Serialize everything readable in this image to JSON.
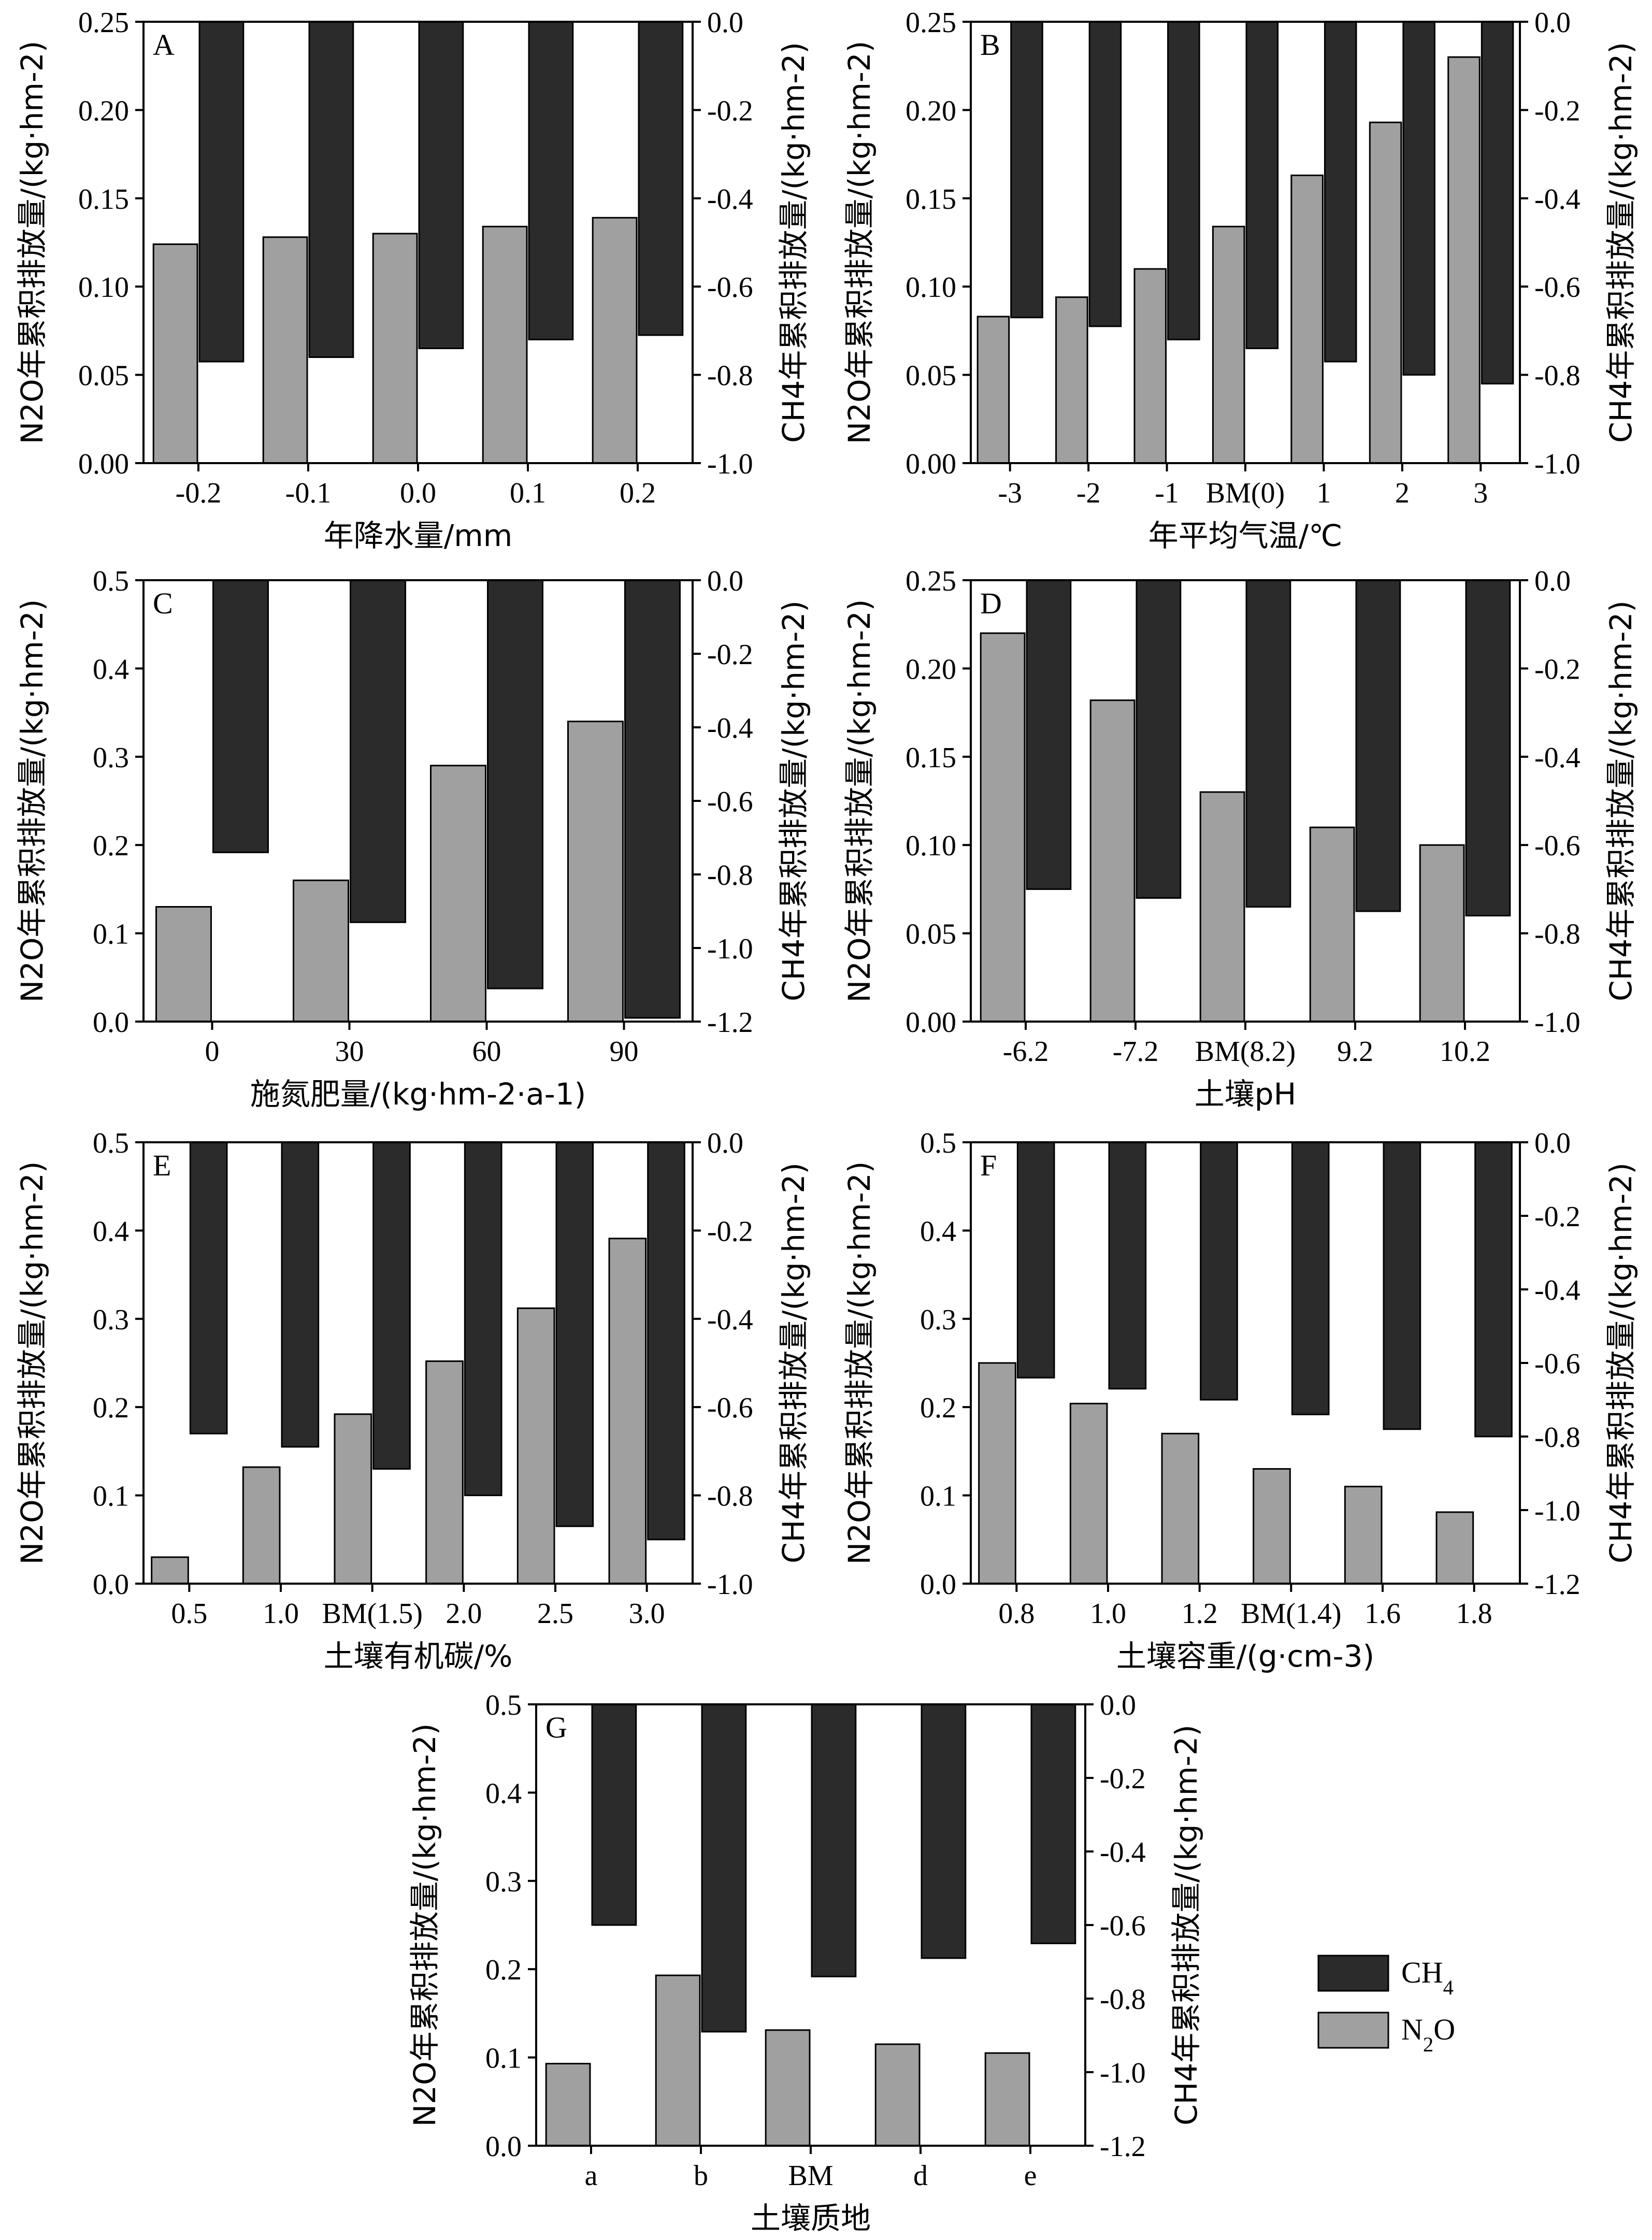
{
  "colors": {
    "ch4": "#2b2b2b",
    "n2o": "#a0a0a0"
  },
  "legend": {
    "items": [
      {
        "key": "ch4",
        "text": "CH4",
        "main": "CH",
        "sub": "4",
        "color": "#2b2b2b"
      },
      {
        "key": "n2o",
        "text": "N2O",
        "main": "N",
        "sub": "2",
        "tail": "O",
        "color": "#a0a0a0"
      }
    ]
  },
  "chart_data": [
    {
      "panel": "A",
      "type": "bar",
      "categories": [
        "-0.2",
        "-0.1",
        "0.0",
        "0.1",
        "0.2"
      ],
      "xlabel": "年降水量/mm",
      "ylabel_left": "N2O年累积排放量/(kg·hm-2)",
      "ylabel_right": "CH4年累积排放量/(kg·hm-2)",
      "ylim_left": [
        0,
        0.25
      ],
      "yticks_left": [
        "0.00",
        "0.05",
        "0.10",
        "0.15",
        "0.20",
        "0.25"
      ],
      "ylim_right": [
        -1.0,
        0.0
      ],
      "yticks_right": [
        "-1.0",
        "-0.8",
        "-0.6",
        "-0.4",
        "-0.2",
        "0.0"
      ],
      "series": [
        {
          "name": "N2O",
          "axis": "left",
          "values": [
            0.124,
            0.128,
            0.13,
            0.134,
            0.139
          ]
        },
        {
          "name": "CH4",
          "axis": "right",
          "values": [
            -0.77,
            -0.76,
            -0.74,
            -0.72,
            -0.71
          ]
        }
      ]
    },
    {
      "panel": "B",
      "type": "bar",
      "categories": [
        "-3",
        "-2",
        "-1",
        "BM(0)",
        "1",
        "2",
        "3"
      ],
      "xlabel": "年平均气温/℃",
      "ylabel_left": "N2O年累积排放量/(kg·hm-2)",
      "ylabel_right": "CH4年累积排放量/(kg·hm-2)",
      "ylim_left": [
        0,
        0.25
      ],
      "yticks_left": [
        "0.00",
        "0.05",
        "0.10",
        "0.15",
        "0.20",
        "0.25"
      ],
      "ylim_right": [
        -1.0,
        0.0
      ],
      "yticks_right": [
        "-1.0",
        "-0.8",
        "-0.6",
        "-0.4",
        "-0.2",
        "0.0"
      ],
      "series": [
        {
          "name": "N2O",
          "axis": "left",
          "values": [
            0.083,
            0.094,
            0.11,
            0.134,
            0.163,
            0.193,
            0.23
          ]
        },
        {
          "name": "CH4",
          "axis": "right",
          "values": [
            -0.67,
            -0.69,
            -0.72,
            -0.74,
            -0.77,
            -0.8,
            -0.82
          ]
        }
      ]
    },
    {
      "panel": "C",
      "type": "bar",
      "categories": [
        "0",
        "30",
        "60",
        "90"
      ],
      "xlabel": "施氮肥量/(kg·hm-2·a-1)",
      "ylabel_left": "N2O年累积排放量/(kg·hm-2)",
      "ylabel_right": "CH4年累积排放量/(kg·hm-2)",
      "ylim_left": [
        0,
        0.5
      ],
      "yticks_left": [
        "0.0",
        "0.1",
        "0.2",
        "0.3",
        "0.4",
        "0.5"
      ],
      "ylim_right": [
        -1.2,
        0.0
      ],
      "yticks_right": [
        "-1.2",
        "-1.0",
        "-0.8",
        "-0.6",
        "-0.4",
        "-0.2",
        "0.0"
      ],
      "series": [
        {
          "name": "N2O",
          "axis": "left",
          "values": [
            0.13,
            0.16,
            0.29,
            0.34
          ]
        },
        {
          "name": "CH4",
          "axis": "right",
          "values": [
            -0.74,
            -0.93,
            -1.11,
            -1.19
          ]
        }
      ]
    },
    {
      "panel": "D",
      "type": "bar",
      "categories": [
        "-6.2",
        "-7.2",
        "BM(8.2)",
        "9.2",
        "10.2"
      ],
      "xlabel": "土壤pH",
      "ylabel_left": "N2O年累积排放量/(kg·hm-2)",
      "ylabel_right": "CH4年累积排放量/(kg·hm-2)",
      "ylim_left": [
        0,
        0.25
      ],
      "yticks_left": [
        "0.00",
        "0.05",
        "0.10",
        "0.15",
        "0.20",
        "0.25"
      ],
      "ylim_right": [
        -1.0,
        0.0
      ],
      "yticks_right": [
        "-1.0",
        "-0.8",
        "-0.6",
        "-0.4",
        "-0.2",
        "0.0"
      ],
      "series": [
        {
          "name": "N2O",
          "axis": "left",
          "values": [
            0.22,
            0.182,
            0.13,
            0.11,
            0.1
          ]
        },
        {
          "name": "CH4",
          "axis": "right",
          "values": [
            -0.7,
            -0.72,
            -0.74,
            -0.75,
            -0.76
          ]
        }
      ]
    },
    {
      "panel": "E",
      "type": "bar",
      "categories": [
        "0.5",
        "1.0",
        "BM(1.5)",
        "2.0",
        "2.5",
        "3.0"
      ],
      "xlabel": "土壤有机碳/%",
      "ylabel_left": "N2O年累积排放量/(kg·hm-2)",
      "ylabel_right": "CH4年累积排放量/(kg·hm-2)",
      "ylim_left": [
        0,
        0.5
      ],
      "yticks_left": [
        "0.0",
        "0.1",
        "0.2",
        "0.3",
        "0.4",
        "0.5"
      ],
      "ylim_right": [
        -1.0,
        0.0
      ],
      "yticks_right": [
        "-1.0",
        "-0.8",
        "-0.6",
        "-0.4",
        "-0.2",
        "0.0"
      ],
      "series": [
        {
          "name": "N2O",
          "axis": "left",
          "values": [
            0.03,
            0.132,
            0.192,
            0.252,
            0.312,
            0.391
          ]
        },
        {
          "name": "CH4",
          "axis": "right",
          "values": [
            -0.66,
            -0.69,
            -0.74,
            -0.8,
            -0.87,
            -0.9
          ]
        }
      ]
    },
    {
      "panel": "F",
      "type": "bar",
      "categories": [
        "0.8",
        "1.0",
        "1.2",
        "BM(1.4)",
        "1.6",
        "1.8"
      ],
      "xlabel": "土壤容重/(g·cm-3)",
      "ylabel_left": "N2O年累积排放量/(kg·hm-2)",
      "ylabel_right": "CH4年累积排放量/(kg·hm-2)",
      "ylim_left": [
        0,
        0.5
      ],
      "yticks_left": [
        "0.0",
        "0.1",
        "0.2",
        "0.3",
        "0.4",
        "0.5"
      ],
      "ylim_right": [
        -1.2,
        0.0
      ],
      "yticks_right": [
        "-1.2",
        "-1.0",
        "-0.8",
        "-0.6",
        "-0.4",
        "-0.2",
        "0.0"
      ],
      "series": [
        {
          "name": "N2O",
          "axis": "left",
          "values": [
            0.25,
            0.204,
            0.17,
            0.13,
            0.11,
            0.081
          ]
        },
        {
          "name": "CH4",
          "axis": "right",
          "values": [
            -0.64,
            -0.67,
            -0.7,
            -0.74,
            -0.78,
            -0.8
          ]
        }
      ]
    },
    {
      "panel": "G",
      "type": "bar",
      "categories": [
        "a",
        "b",
        "BM",
        "d",
        "e"
      ],
      "xlabel": "土壤质地",
      "ylabel_left": "N2O年累积排放量/(kg·hm-2)",
      "ylabel_right": "CH4年累积排放量/(kg·hm-2)",
      "ylim_left": [
        0,
        0.5
      ],
      "yticks_left": [
        "0.0",
        "0.1",
        "0.2",
        "0.3",
        "0.4",
        "0.5"
      ],
      "ylim_right": [
        -1.2,
        0.0
      ],
      "yticks_right": [
        "-1.2",
        "-1.0",
        "-0.8",
        "-0.6",
        "-0.4",
        "-0.2",
        "0.0"
      ],
      "series": [
        {
          "name": "N2O",
          "axis": "left",
          "values": [
            0.093,
            0.193,
            0.131,
            0.115,
            0.105
          ]
        },
        {
          "name": "CH4",
          "axis": "right",
          "values": [
            -0.6,
            -0.89,
            -0.74,
            -0.69,
            -0.65
          ]
        }
      ]
    }
  ]
}
